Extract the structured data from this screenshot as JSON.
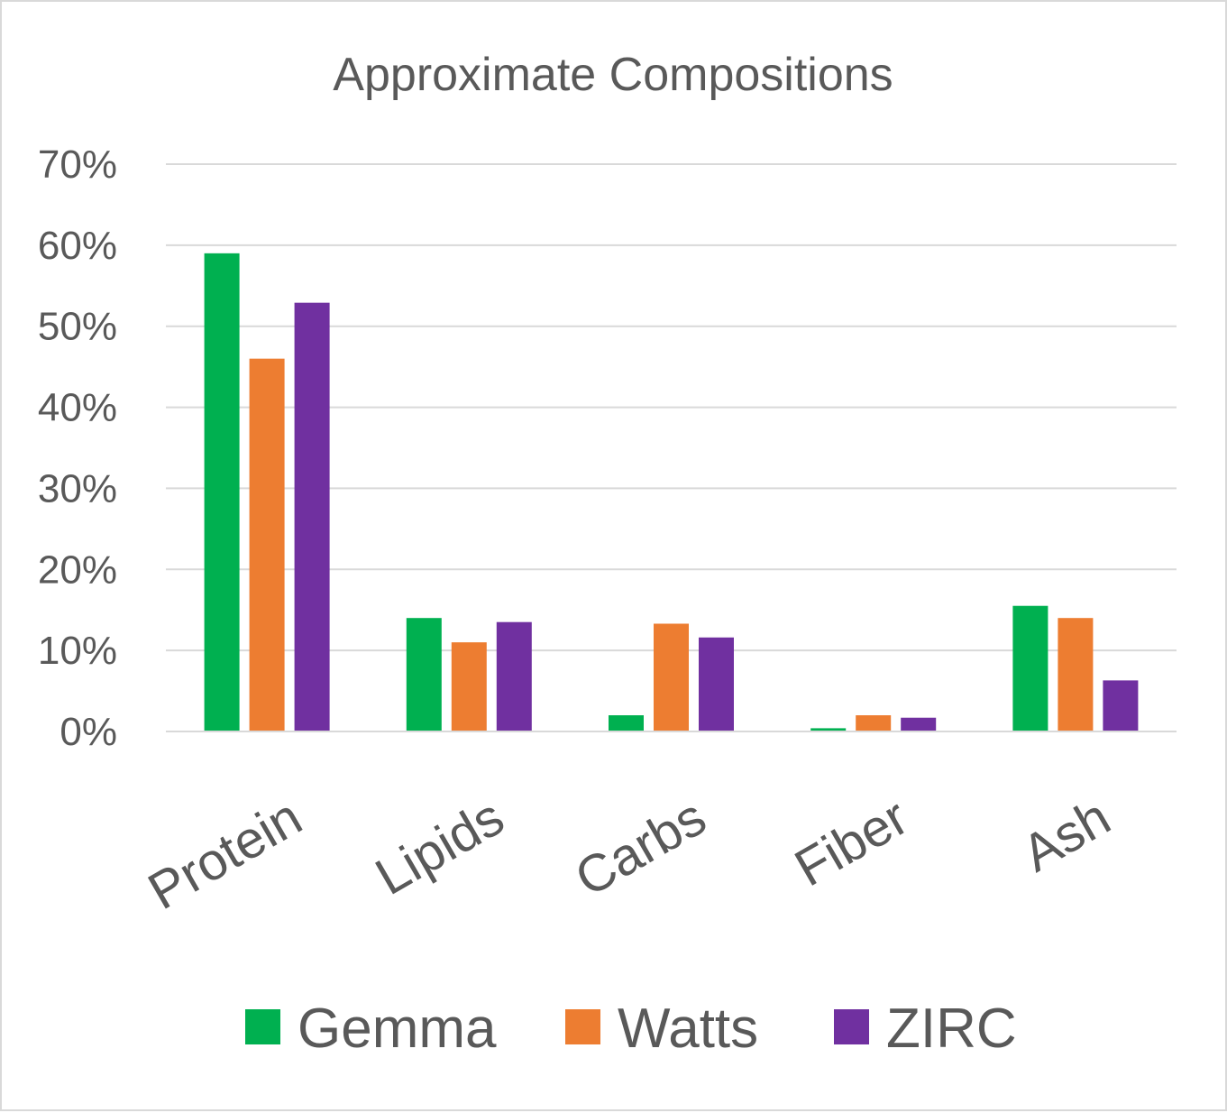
{
  "chart_data": {
    "type": "bar",
    "title": "Approximate Compositions",
    "xlabel": "",
    "ylabel": "",
    "categories": [
      "Protein",
      "Lipids",
      "Carbs",
      "Fiber",
      "Ash"
    ],
    "series": [
      {
        "name": "Gemma",
        "color": "#00b050",
        "values": [
          0.59,
          0.14,
          0.02,
          0.004,
          0.155
        ]
      },
      {
        "name": "Watts",
        "color": "#ed7d31",
        "values": [
          0.46,
          0.11,
          0.133,
          0.02,
          0.14
        ]
      },
      {
        "name": "ZIRC",
        "color": "#7030a0",
        "values": [
          0.529,
          0.135,
          0.116,
          0.017,
          0.063
        ]
      }
    ],
    "ylim": [
      0,
      0.7
    ],
    "yticks": [
      "0%",
      "10%",
      "20%",
      "30%",
      "40%",
      "50%",
      "60%",
      "70%"
    ],
    "grid": true,
    "legend_position": "bottom"
  }
}
